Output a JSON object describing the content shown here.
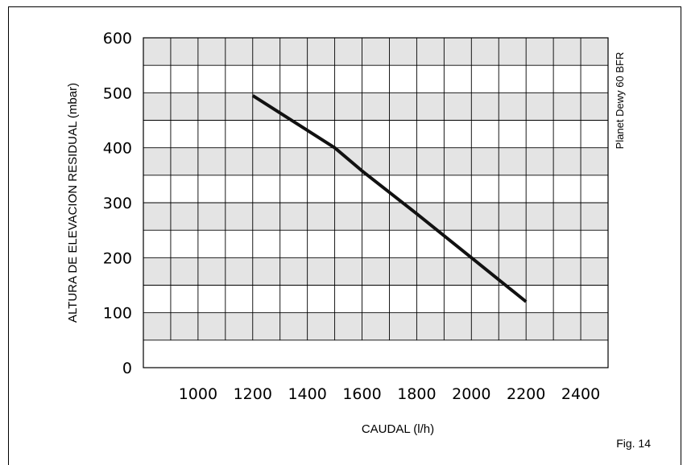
{
  "chart_data": {
    "type": "line",
    "xlabel": "CAUDAL (l/h)",
    "ylabel": "ALTURA DE ELEVACION RESIDUAL (mbar)",
    "series_label": "Planet Dewy 60 BFR",
    "figure_label": "Fig. 14",
    "xlim": [
      800,
      2500
    ],
    "ylim": [
      0,
      600
    ],
    "x_ticks": [
      1000,
      1200,
      1400,
      1600,
      1800,
      2000,
      2200,
      2400
    ],
    "x_tick_labels": [
      "1000",
      "1200",
      "1400",
      "1600",
      "1800",
      "2000",
      "2200",
      "2400"
    ],
    "y_ticks": [
      0,
      100,
      200,
      300,
      400,
      500,
      600
    ],
    "y_tick_labels": [
      "0",
      "100",
      "200",
      "300",
      "400",
      "500",
      "600"
    ],
    "grid": true,
    "series": [
      {
        "name": "Planet Dewy 60 BFR",
        "x": [
          1200,
          1500,
          1600,
          1800,
          2000,
          2200
        ],
        "y": [
          495,
          400,
          358,
          280,
          200,
          120
        ]
      }
    ]
  }
}
